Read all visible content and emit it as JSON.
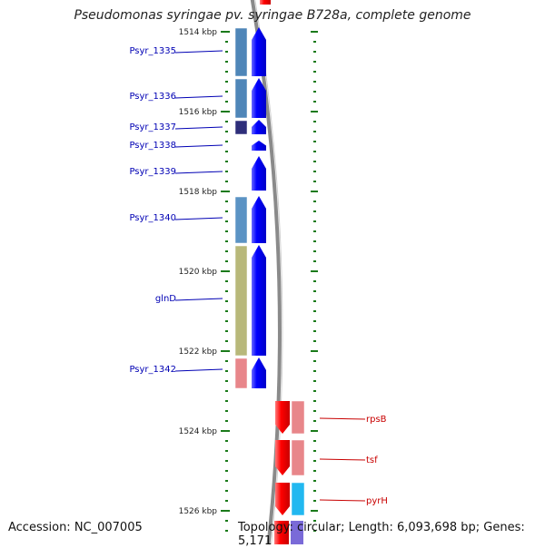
{
  "title": "Pseudomonas syringae pv. syringae B728a, complete genome",
  "accession": "Accession: NC_007005",
  "topology": "Topology: circular; Length: 6,093,698 bp; Genes: 5,171",
  "scale": [
    "1514 kbp",
    "1516 kbp",
    "1518 kbp",
    "1520 kbp",
    "1522 kbp",
    "1524 kbp",
    "1526 kbp"
  ],
  "colors": {
    "forward_cds": "#0000ff",
    "reverse_cds": "#ff0000",
    "left_labels": "#0000b4",
    "right_labels": "#c80000",
    "tick": "#1a7a1a",
    "backbone": "#8a8a8a"
  },
  "genes_forward": [
    {
      "label": "Psyr_1335",
      "cog_color": "#4f86b8"
    },
    {
      "label": "Psyr_1336",
      "cog_color": "#4f86b8"
    },
    {
      "label": "Psyr_1337",
      "cog_color": "#2e2e7a"
    },
    {
      "label": "Psyr_1338",
      "cog_color": ""
    },
    {
      "label": "Psyr_1339",
      "cog_color": ""
    },
    {
      "label": "Psyr_1340",
      "cog_color": "#5b93c4"
    },
    {
      "label": "glnD",
      "cog_color": "#b8b87a"
    },
    {
      "label": "Psyr_1342",
      "cog_color": "#e8868a"
    }
  ],
  "genes_reverse": [
    {
      "label": "rpsB",
      "cog_color": "#e8868a"
    },
    {
      "label": "tsf",
      "cog_color": "#e8868a"
    },
    {
      "label": "pyrH",
      "cog_color": "#22b8f0"
    }
  ]
}
